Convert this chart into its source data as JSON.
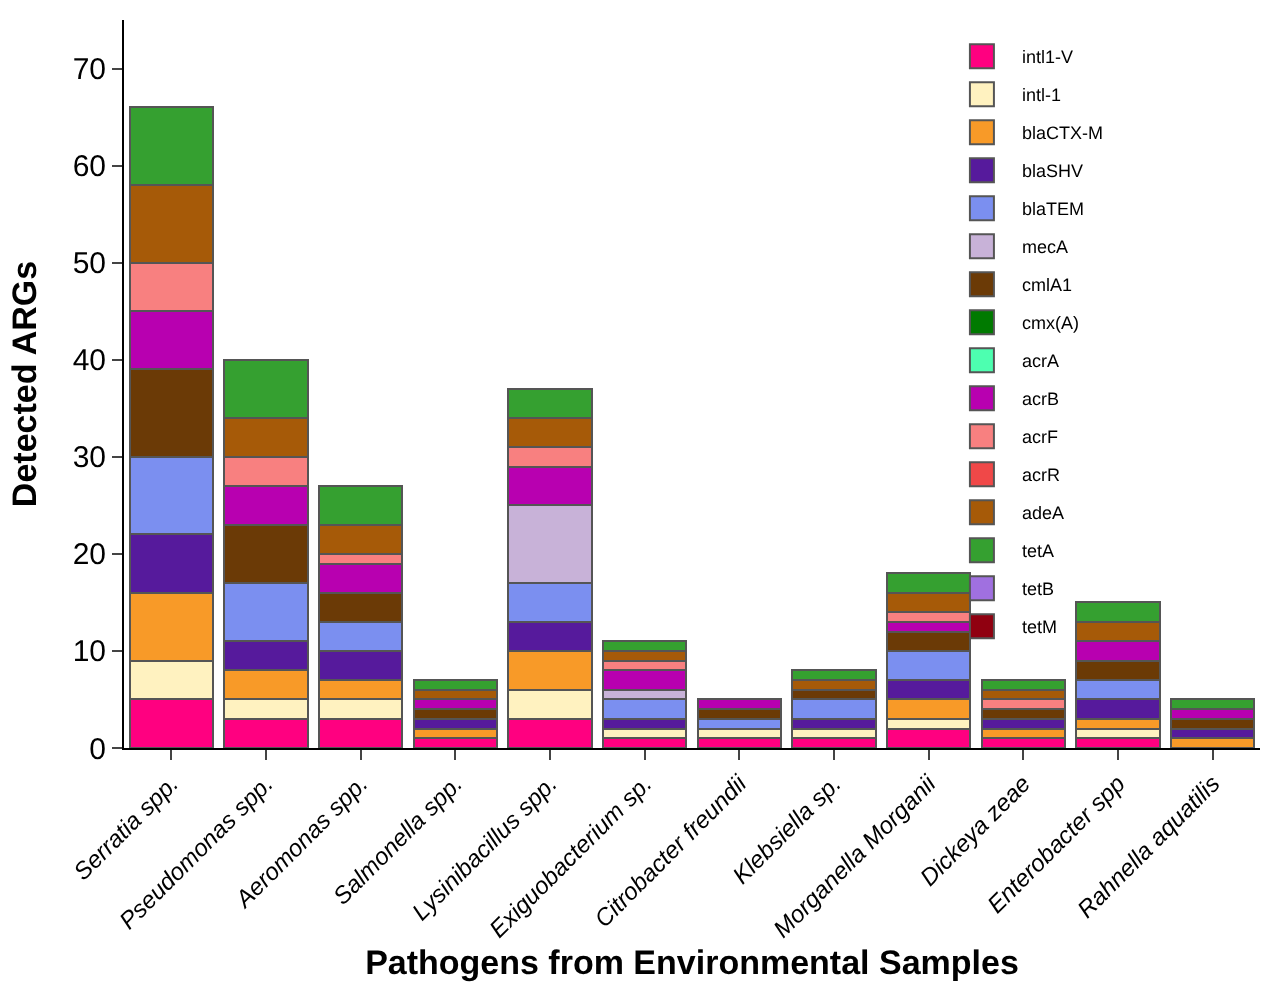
{
  "chart_data": {
    "type": "bar",
    "stacked": true,
    "xlabel": "Pathogens from Environmental Samples",
    "ylabel": "Detected ARGs",
    "categories": [
      "Serratia spp.",
      "Pseudomonas spp.",
      "Aeromonas spp.",
      "Salmonella spp.",
      "Lysinibacillus spp.",
      "Exiguobacterium sp.",
      "Citrobacter freundii",
      "Klebsiella sp.",
      "Morganella Morganii",
      "Dickeya zeae",
      "Enterobacter spp",
      "Rahnella aquatilis"
    ],
    "ylim": [
      0,
      75
    ],
    "yticks": [
      0,
      10,
      20,
      30,
      40,
      50,
      60,
      70
    ],
    "grid": false,
    "legend": "top right",
    "series": [
      {
        "name": "intl1-V",
        "color": "#ff0080",
        "values": [
          5,
          3,
          3,
          1,
          3,
          1,
          1,
          1,
          2,
          1,
          1,
          null
        ]
      },
      {
        "name": "intl-1",
        "color": "#fff2c0",
        "values": [
          4,
          2,
          2,
          null,
          3,
          1,
          1,
          1,
          1,
          null,
          1,
          null
        ]
      },
      {
        "name": "blaCTX-M",
        "color": "#f89a28",
        "values": [
          7,
          3,
          2,
          1,
          4,
          null,
          null,
          null,
          2,
          1,
          1,
          1
        ]
      },
      {
        "name": "blaSHV",
        "color": "#561a9c",
        "values": [
          6,
          3,
          3,
          1,
          3,
          1,
          null,
          1,
          2,
          1,
          2,
          1
        ]
      },
      {
        "name": "blaTEM",
        "color": "#7b8ff0",
        "values": [
          8,
          6,
          3,
          null,
          4,
          2,
          1,
          2,
          3,
          null,
          2,
          null
        ]
      },
      {
        "name": "mecA",
        "color": "#c8b2d8",
        "values": [
          null,
          null,
          null,
          null,
          8,
          1,
          null,
          null,
          null,
          null,
          null,
          null
        ]
      },
      {
        "name": "cmlA1",
        "color": "#6b3a06",
        "values": [
          9,
          6,
          3,
          1,
          null,
          null,
          1,
          1,
          2,
          1,
          2,
          1
        ]
      },
      {
        "name": "cmx(A)",
        "color": "#007a00",
        "values": [
          null,
          null,
          null,
          null,
          null,
          null,
          null,
          null,
          null,
          null,
          null,
          null
        ]
      },
      {
        "name": "acrA",
        "color": "#4dffb0",
        "values": [
          null,
          null,
          null,
          null,
          null,
          null,
          null,
          null,
          null,
          null,
          null,
          null
        ]
      },
      {
        "name": "acrB",
        "color": "#b800b0",
        "values": [
          6,
          4,
          3,
          1,
          4,
          2,
          1,
          null,
          1,
          null,
          2,
          1
        ]
      },
      {
        "name": "acrF",
        "color": "#f88080",
        "values": [
          5,
          3,
          1,
          null,
          2,
          1,
          null,
          null,
          1,
          1,
          null,
          null
        ]
      },
      {
        "name": "acrR",
        "color": "#f04848",
        "values": [
          null,
          null,
          null,
          null,
          null,
          null,
          null,
          null,
          null,
          null,
          null,
          null
        ]
      },
      {
        "name": "adeA",
        "color": "#a65a08",
        "values": [
          8,
          4,
          3,
          1,
          3,
          1,
          null,
          1,
          2,
          1,
          2,
          null
        ]
      },
      {
        "name": "tetA",
        "color": "#35a030",
        "values": [
          8,
          6,
          4,
          1,
          3,
          1,
          null,
          1,
          2,
          1,
          2,
          1
        ]
      },
      {
        "name": "tetB",
        "color": "#a070e0",
        "values": [
          null,
          null,
          null,
          null,
          null,
          null,
          null,
          null,
          null,
          null,
          null,
          null
        ]
      },
      {
        "name": "tetM",
        "color": "#900010",
        "values": [
          null,
          null,
          null,
          null,
          null,
          null,
          null,
          null,
          null,
          null,
          null,
          null
        ]
      }
    ]
  }
}
